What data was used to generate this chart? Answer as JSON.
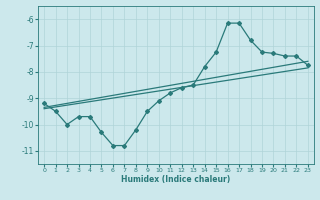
{
  "title": "",
  "xlabel": "Humidex (Indice chaleur)",
  "xlim": [
    -0.5,
    23.5
  ],
  "ylim": [
    -11.5,
    -5.5
  ],
  "yticks": [
    -11,
    -10,
    -9,
    -8,
    -7,
    -6
  ],
  "xticks": [
    0,
    1,
    2,
    3,
    4,
    5,
    6,
    7,
    8,
    9,
    10,
    11,
    12,
    13,
    14,
    15,
    16,
    17,
    18,
    19,
    20,
    21,
    22,
    23
  ],
  "bg_color": "#cce8ec",
  "line_color": "#2a7a7a",
  "grid_color": "#b0d4d8",
  "curve1_x": [
    0,
    1,
    2,
    3,
    4,
    5,
    6,
    7,
    8,
    9,
    10,
    11,
    12,
    13,
    14,
    15,
    16,
    17,
    18,
    19,
    20,
    21,
    22,
    23
  ],
  "curve1_y": [
    -9.2,
    -9.5,
    -10.0,
    -9.7,
    -9.7,
    -10.3,
    -10.8,
    -10.8,
    -10.2,
    -9.5,
    -9.1,
    -8.8,
    -8.6,
    -8.5,
    -7.8,
    -7.25,
    -6.15,
    -6.15,
    -6.8,
    -7.25,
    -7.3,
    -7.4,
    -7.4,
    -7.75
  ],
  "trend1_x": [
    0,
    23
  ],
  "trend1_y": [
    -9.35,
    -7.6
  ],
  "trend2_x": [
    0,
    23
  ],
  "trend2_y": [
    -9.4,
    -7.85
  ]
}
